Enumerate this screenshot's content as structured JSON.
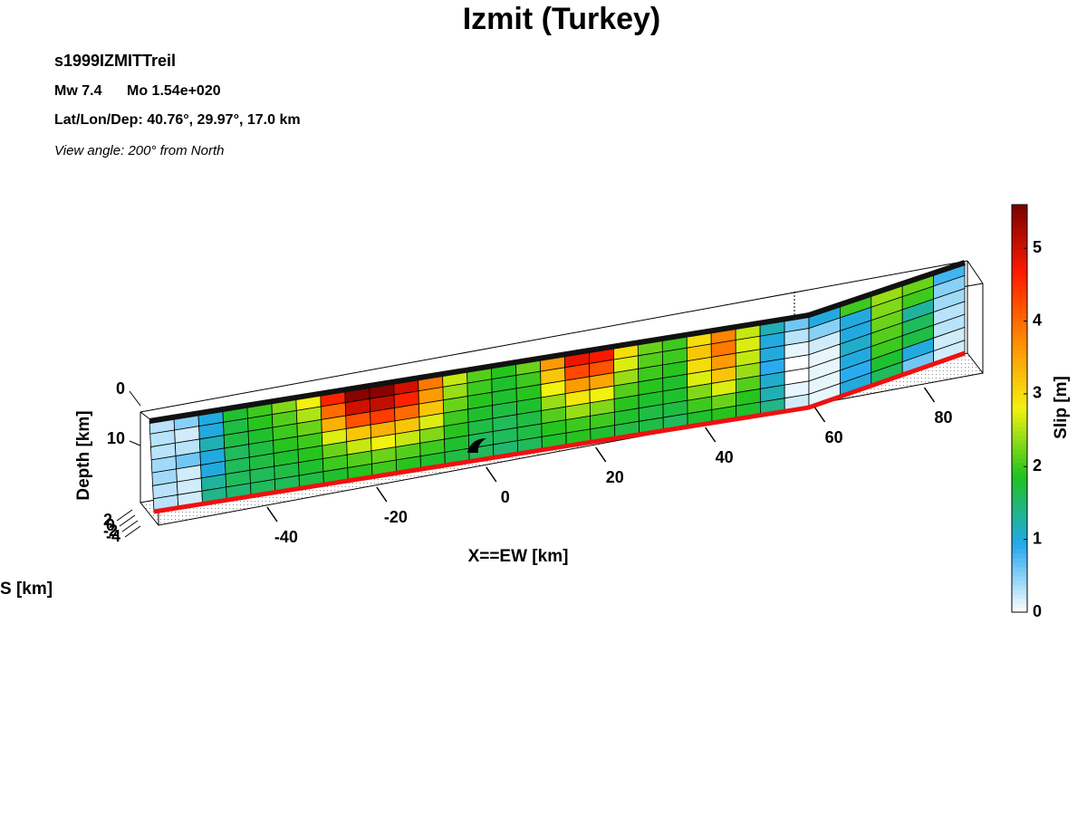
{
  "chart_data": {
    "type": "slip-model",
    "title": "Izmit (Turkey)",
    "event": "s1999IZMITTreil",
    "magnitude": "Mw 7.4",
    "moment": "Mo 1.54e+020",
    "location": "Lat/Lon/Dep: 40.76°, 29.97°, 17.0 km",
    "view": "View angle: 200° from North",
    "x_label": "X==EW [km]",
    "y_label": "S [km]",
    "z_label": "Depth [km]",
    "colorbar_label": "Slip [m]",
    "xlim": [
      -60,
      90
    ],
    "xticks": [
      -40,
      -20,
      0,
      20,
      40,
      60,
      80
    ],
    "ylim": [
      -4,
      2
    ],
    "yticks": [
      2,
      0,
      -2,
      -4
    ],
    "zlim": [
      0,
      23
    ],
    "zticks": [
      0,
      10
    ],
    "clim": [
      0,
      5.6
    ],
    "cticks": [
      0,
      1,
      2,
      3,
      4,
      5
    ],
    "colormap": [
      "#ffffff",
      "#22a8ee",
      "#1fc21f",
      "#f2f20f",
      "#ff8c00",
      "#ff1a00",
      "#7a0000"
    ],
    "slip": [
      [
        0.3,
        0.3,
        0.3,
        0.4,
        0.4,
        0.3,
        0.3
      ],
      [
        0.5,
        0.2,
        0.3,
        0.6,
        0.2,
        0.2,
        0.2
      ],
      [
        1.0,
        1.0,
        1.2,
        1.0,
        1.0,
        1.3,
        1.4
      ],
      [
        1.8,
        1.7,
        1.7,
        1.6,
        1.6,
        1.6,
        1.5
      ],
      [
        2.0,
        1.9,
        1.8,
        1.7,
        1.7,
        1.6,
        1.6
      ],
      [
        2.3,
        2.1,
        2.0,
        1.9,
        1.8,
        1.7,
        1.6
      ],
      [
        2.8,
        2.5,
        2.2,
        2.0,
        1.9,
        1.8,
        1.7
      ],
      [
        4.6,
        4.0,
        3.4,
        2.7,
        2.2,
        2.0,
        1.8
      ],
      [
        5.5,
        5.0,
        4.2,
        3.2,
        2.6,
        2.1,
        1.9
      ],
      [
        5.5,
        5.1,
        4.4,
        3.4,
        2.8,
        2.2,
        2.0
      ],
      [
        5.0,
        4.6,
        4.0,
        3.2,
        2.6,
        2.1,
        1.9
      ],
      [
        3.9,
        3.6,
        3.2,
        2.7,
        2.3,
        2.0,
        1.8
      ],
      [
        2.6,
        2.4,
        2.2,
        2.0,
        1.9,
        1.8,
        1.7
      ],
      [
        2.1,
        2.0,
        1.9,
        1.8,
        1.7,
        1.6,
        1.6
      ],
      [
        1.9,
        1.8,
        1.8,
        1.7,
        1.6,
        1.6,
        1.5
      ],
      [
        2.2,
        2.0,
        1.9,
        1.8,
        1.7,
        1.7,
        1.6
      ],
      [
        3.6,
        3.2,
        2.8,
        2.4,
        2.1,
        1.9,
        1.8
      ],
      [
        4.8,
        4.3,
        3.6,
        2.9,
        2.4,
        2.0,
        1.9
      ],
      [
        4.7,
        4.2,
        3.5,
        2.8,
        2.3,
        2.0,
        1.8
      ],
      [
        3.0,
        2.7,
        2.4,
        2.1,
        1.9,
        1.8,
        1.7
      ],
      [
        2.2,
        2.1,
        2.0,
        1.9,
        1.8,
        1.7,
        1.7
      ],
      [
        2.0,
        2.0,
        1.9,
        1.8,
        1.8,
        1.7,
        1.6
      ],
      [
        3.0,
        3.2,
        3.0,
        2.7,
        2.3,
        2.0,
        1.8
      ],
      [
        3.8,
        3.9,
        3.6,
        3.2,
        2.7,
        2.2,
        1.9
      ],
      [
        2.6,
        2.7,
        2.6,
        2.4,
        2.1,
        1.9,
        1.8
      ],
      [
        1.2,
        1.0,
        1.0,
        0.9,
        1.1,
        1.2,
        1.4
      ],
      [
        0.6,
        0.3,
        0.1,
        0,
        0,
        0.1,
        0.2
      ],
      [
        1.0,
        0.5,
        0.2,
        0.1,
        0.1,
        0.1,
        0.1
      ],
      [
        2.0,
        1.0,
        1.0,
        1.1,
        1.0,
        0.9,
        1.0
      ],
      [
        2.4,
        2.3,
        2.2,
        2.1,
        2.0,
        1.8,
        1.6
      ],
      [
        2.2,
        2.0,
        1.3,
        1.6,
        1.7,
        1.0,
        0.6
      ],
      [
        0.8,
        0.5,
        0.4,
        0.3,
        0.3,
        0.2,
        0.2
      ]
    ]
  }
}
